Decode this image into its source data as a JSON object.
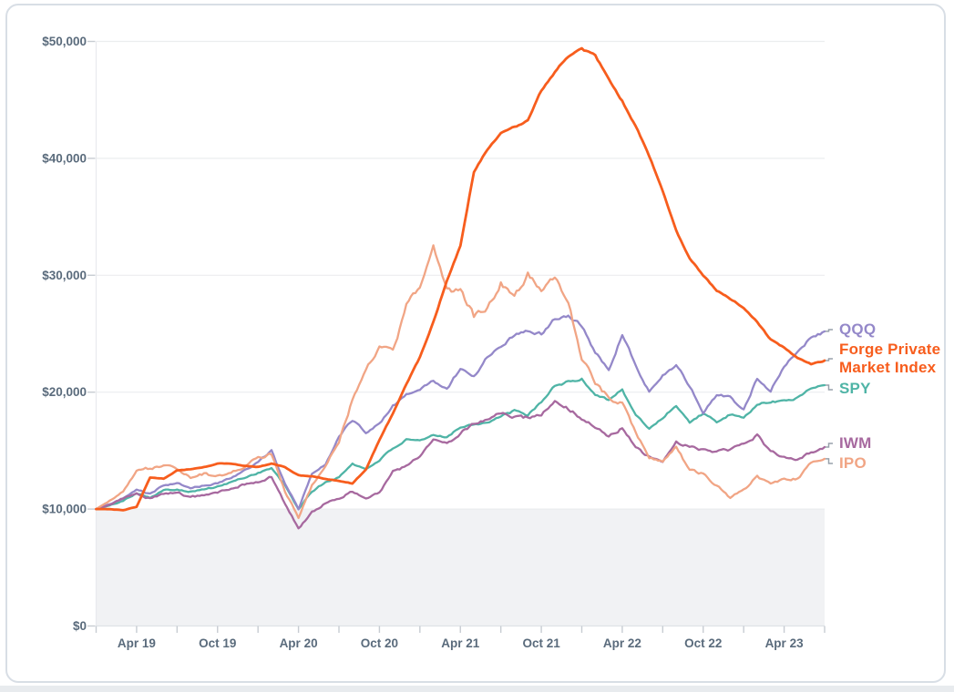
{
  "page": {
    "background_color": "#ffffff",
    "card_border_color": "#d8dee5",
    "bottom_strip_color": "#e8ebee"
  },
  "chart_data": {
    "type": "line",
    "title": "",
    "xlabel": "",
    "ylabel": "",
    "initial_investment": 10000,
    "x_start_month": "Jan 2019",
    "x_end_month": "Jul 2023",
    "x_step": "1 month",
    "x_axis": {
      "tick_labels": [
        "Apr 19",
        "Oct 19",
        "Apr 20",
        "Oct 20",
        "Apr 21",
        "Oct 21",
        "Apr 22",
        "Oct 22",
        "Apr 23"
      ],
      "minor_tick_every_months": 3,
      "label_color": "#5a6b7c"
    },
    "y_axis": {
      "min": 0,
      "max": 50000,
      "tick_labels": [
        "$0",
        "$10,000",
        "$20,000",
        "$30,000",
        "$40,000",
        "$50,000"
      ],
      "gridlines": true,
      "gridline_color": "#ebedef",
      "label_color": "#5a6b7c"
    },
    "below_initial_region": {
      "below_value": 10000,
      "fill_color": "#f1f2f4"
    },
    "legend_position": "right",
    "legend": [
      {
        "label": "QQQ",
        "color": "#9488c9"
      },
      {
        "label": "Forge Private Market Index",
        "color": "#f75d1d"
      },
      {
        "label": "SPY",
        "color": "#4fb4a6"
      },
      {
        "label": "IWM",
        "color": "#a7699f"
      },
      {
        "label": "IPO",
        "color": "#f1a585"
      }
    ],
    "series": [
      {
        "name": "QQQ",
        "color": "#9488c9",
        "noise": 0.01,
        "width": 2.3,
        "values": [
          10000,
          10400,
          10900,
          11700,
          11300,
          12000,
          12200,
          11800,
          12000,
          12200,
          12700,
          13300,
          14000,
          15000,
          12200,
          10000,
          13000,
          13800,
          16200,
          17600,
          16600,
          17300,
          18800,
          19800,
          20200,
          21000,
          20300,
          22000,
          21300,
          23000,
          24000,
          24900,
          25300,
          25000,
          26300,
          26600,
          25700,
          23400,
          22000,
          24900,
          22300,
          20000,
          21400,
          22400,
          20500,
          18300,
          19800,
          19500,
          18500,
          21200,
          20100,
          22300,
          23300,
          24700,
          25200
        ]
      },
      {
        "name": "Forge Private Market Index",
        "color": "#f75d1d",
        "noise": 0.003,
        "width": 2.8,
        "values": [
          10000,
          10000,
          9900,
          10200,
          12700,
          12600,
          13300,
          13400,
          13600,
          13900,
          13900,
          13700,
          13600,
          13900,
          13600,
          12900,
          12800,
          12600,
          12400,
          12200,
          13400,
          15900,
          18200,
          20700,
          23000,
          26000,
          29500,
          32500,
          38800,
          40800,
          42200,
          42700,
          43200,
          45800,
          47400,
          48700,
          49300,
          48800,
          46800,
          44900,
          42700,
          40200,
          37200,
          33800,
          31400,
          30000,
          28700,
          28000,
          27200,
          26000,
          24500,
          23800,
          22900,
          22400,
          22700
        ]
      },
      {
        "name": "SPY",
        "color": "#4fb4a6",
        "noise": 0.009,
        "width": 2.3,
        "values": [
          10000,
          10300,
          10700,
          11400,
          11000,
          11600,
          11700,
          11500,
          11700,
          11900,
          12300,
          12700,
          13100,
          13500,
          12000,
          10000,
          11500,
          12300,
          12700,
          13900,
          13400,
          14200,
          15200,
          15900,
          15800,
          16300,
          16200,
          17000,
          17300,
          17400,
          17900,
          18400,
          18000,
          19200,
          20500,
          20900,
          21100,
          19800,
          19400,
          20200,
          18000,
          16900,
          17800,
          18900,
          17400,
          18200,
          17400,
          18100,
          17700,
          19000,
          19100,
          19300,
          19500,
          20400,
          20600
        ]
      },
      {
        "name": "IWM",
        "color": "#a7699f",
        "noise": 0.014,
        "width": 2.3,
        "values": [
          10000,
          10400,
          10900,
          11300,
          10900,
          11300,
          11500,
          11000,
          11200,
          11400,
          11800,
          12100,
          12300,
          12800,
          10500,
          8300,
          9700,
          10500,
          10900,
          11500,
          10900,
          11400,
          13200,
          13700,
          14500,
          16000,
          15600,
          16500,
          17300,
          17600,
          18300,
          17900,
          17800,
          18000,
          19300,
          18600,
          17800,
          17100,
          16200,
          16900,
          15300,
          14400,
          14100,
          15800,
          15300,
          15000,
          14900,
          15100,
          15600,
          16300,
          14900,
          14500,
          14200,
          14900,
          15300
        ]
      },
      {
        "name": "IPO",
        "color": "#f1a585",
        "noise": 0.016,
        "width": 2.3,
        "values": [
          10000,
          10700,
          11600,
          13300,
          13500,
          13800,
          13400,
          12700,
          13000,
          12800,
          13100,
          13700,
          14400,
          14700,
          11500,
          9300,
          12000,
          13800,
          15800,
          19300,
          22000,
          23800,
          23400,
          27500,
          28900,
          32500,
          28600,
          28800,
          26500,
          27200,
          29300,
          28200,
          30100,
          28500,
          30000,
          27700,
          23000,
          20800,
          19500,
          19000,
          16500,
          14500,
          14000,
          15300,
          13300,
          13000,
          12000,
          11000,
          11600,
          12800,
          12100,
          12500,
          12600,
          13900,
          14300
        ]
      }
    ],
    "draw_order": [
      "SPY",
      "QQQ",
      "IWM",
      "IPO",
      "Forge Private Market Index"
    ]
  }
}
